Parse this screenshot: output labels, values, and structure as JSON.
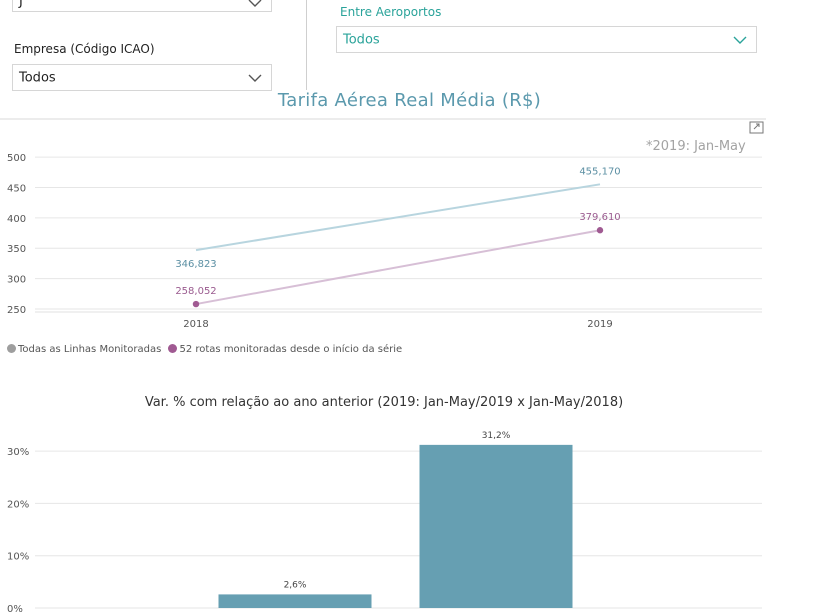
{
  "filters": {
    "top_left_value": "J",
    "empresa": {
      "label": "Empresa (Código ICAO)",
      "value": "Todos"
    },
    "aeroportos": {
      "label": "Entre Aeroportos",
      "value": "Todos"
    }
  },
  "line_chart_note": "*2019: Jan-May",
  "chart_data": [
    {
      "type": "line",
      "title": "Tarifa Aérea Real Média (R$)",
      "x": [
        "2018",
        "2019"
      ],
      "y_ticks": [
        "250",
        "300",
        "350",
        "400",
        "450",
        "500"
      ],
      "ylim": [
        245,
        510
      ],
      "grid": true,
      "legend_position": "bottom-left",
      "series": [
        {
          "name": "Todas as Linhas Monitoradas",
          "values": [
            346.823,
            455.17
          ],
          "labels": [
            "346,823",
            "455,170"
          ],
          "color": "#b8d5df",
          "label_color": "#5b8fa3",
          "legend_color": "#9e9e9e",
          "markers": false
        },
        {
          "name": "52 rotas monitoradas desde o início da série",
          "values": [
            258.052,
            379.61
          ],
          "labels": [
            "258,052",
            "379,610"
          ],
          "color": "#d7bfd6",
          "label_color": "#9a5b8f",
          "legend_color": "#a05a92",
          "markers": true
        }
      ]
    },
    {
      "type": "bar",
      "title": "Var. % com relação ao ano anterior (2019: Jan-May/2019 x Jan-May/2018)",
      "categories": [
        "",
        ""
      ],
      "values": [
        2.6,
        31.2
      ],
      "labels": [
        "2,6%",
        "31,2%"
      ],
      "y_ticks": [
        "0%",
        "10%",
        "20%",
        "30%"
      ],
      "ylim": [
        0,
        35
      ],
      "grid": true,
      "color": "#669fb2"
    }
  ]
}
